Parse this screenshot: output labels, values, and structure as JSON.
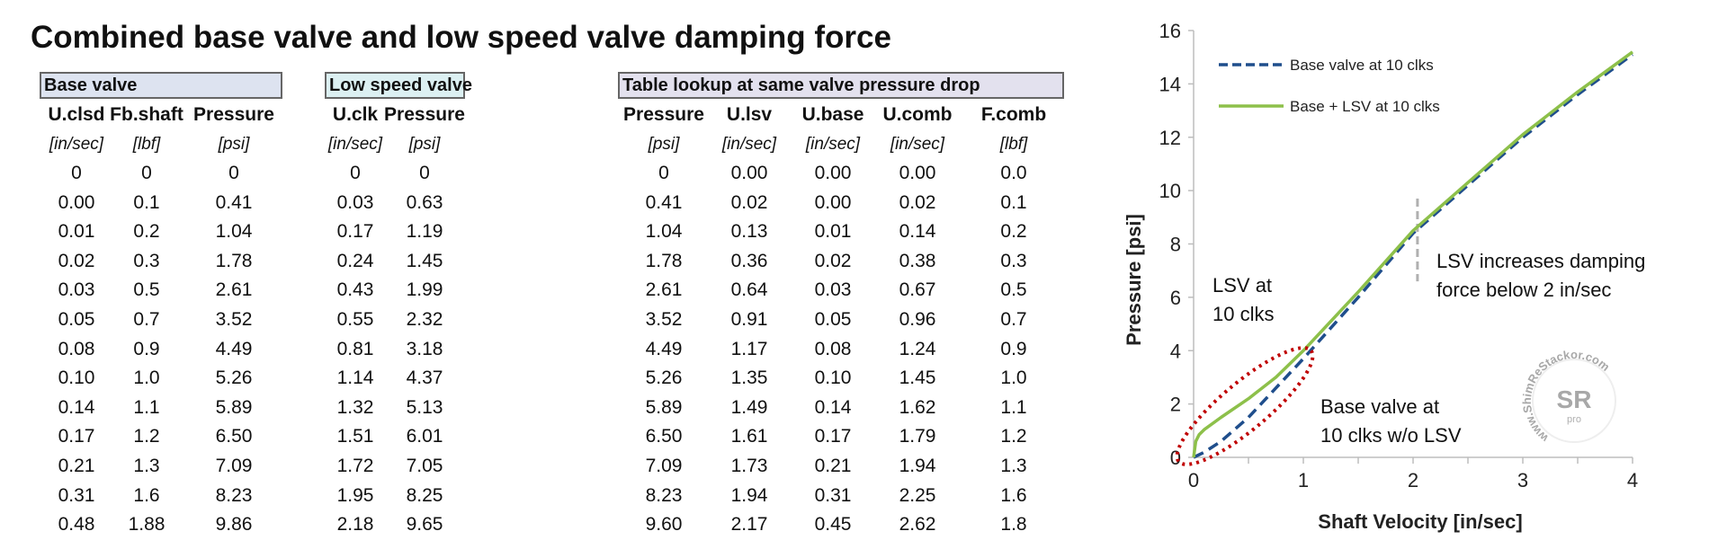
{
  "title": "Combined base valve and low speed valve damping force",
  "tables": [
    {
      "label": "Base valve",
      "color": "#dde3f0",
      "columns": [
        {
          "header": "U.clsd",
          "unit": "[in/sec]",
          "values": [
            "0",
            "0.00",
            "0.01",
            "0.02",
            "0.03",
            "0.05",
            "0.08",
            "0.10",
            "0.14",
            "0.17",
            "0.21",
            "0.31",
            "0.48"
          ]
        },
        {
          "header": "Fb.shaft",
          "unit": "[lbf]",
          "values": [
            "0",
            "0.1",
            "0.2",
            "0.3",
            "0.5",
            "0.7",
            "0.9",
            "1.0",
            "1.1",
            "1.2",
            "1.3",
            "1.6",
            "1.88"
          ]
        },
        {
          "header": "Pressure",
          "unit": "[psi]",
          "values": [
            "0",
            "0.41",
            "1.04",
            "1.78",
            "2.61",
            "3.52",
            "4.49",
            "5.26",
            "5.89",
            "6.50",
            "7.09",
            "8.23",
            "9.86"
          ]
        }
      ]
    },
    {
      "label": "Low speed valve",
      "color": "#dcf0f2",
      "columns": [
        {
          "header": "U.clk",
          "unit": "[in/sec]",
          "values": [
            "0",
            "0.03",
            "0.17",
            "0.24",
            "0.43",
            "0.55",
            "0.81",
            "1.14",
            "1.32",
            "1.51",
            "1.72",
            "1.95",
            "2.18"
          ]
        },
        {
          "header": "Pressure",
          "unit": "[psi]",
          "values": [
            "0",
            "0.63",
            "1.19",
            "1.45",
            "1.99",
            "2.32",
            "3.18",
            "4.37",
            "5.13",
            "6.01",
            "7.05",
            "8.25",
            "9.65"
          ]
        }
      ]
    },
    {
      "label": "Table lookup at same valve pressure drop",
      "color": "#e3e1ee",
      "columns": [
        {
          "header": "Pressure",
          "unit": "[psi]",
          "values": [
            "0",
            "0.41",
            "1.04",
            "1.78",
            "2.61",
            "3.52",
            "4.49",
            "5.26",
            "5.89",
            "6.50",
            "7.09",
            "8.23",
            "9.60"
          ]
        },
        {
          "header": "U.lsv",
          "unit": "[in/sec]",
          "values": [
            "0.00",
            "0.02",
            "0.13",
            "0.36",
            "0.64",
            "0.91",
            "1.17",
            "1.35",
            "1.49",
            "1.61",
            "1.73",
            "1.94",
            "2.17"
          ]
        },
        {
          "header": "U.base",
          "unit": "[in/sec]",
          "values": [
            "0.00",
            "0.00",
            "0.01",
            "0.02",
            "0.03",
            "0.05",
            "0.08",
            "0.10",
            "0.14",
            "0.17",
            "0.21",
            "0.31",
            "0.45"
          ]
        },
        {
          "header": "U.comb",
          "unit": "[in/sec]",
          "values": [
            "0.00",
            "0.02",
            "0.14",
            "0.38",
            "0.67",
            "0.96",
            "1.24",
            "1.45",
            "1.62",
            "1.79",
            "1.94",
            "2.25",
            "2.62"
          ]
        },
        {
          "header": "F.comb",
          "unit": "[lbf]",
          "values": [
            "0.0",
            "0.1",
            "0.2",
            "0.3",
            "0.5",
            "0.7",
            "0.9",
            "1.0",
            "1.1",
            "1.2",
            "1.3",
            "1.6",
            "1.8"
          ]
        }
      ]
    }
  ],
  "chart_data": {
    "type": "line",
    "xlabel": "Shaft Velocity [in/sec]",
    "ylabel": "Pressure [psi]",
    "xlim": [
      0,
      4
    ],
    "ylim": [
      0,
      16
    ],
    "xticks": [
      "0",
      "1",
      "2",
      "3",
      "4"
    ],
    "yticks": [
      "0",
      "2",
      "4",
      "6",
      "8",
      "10",
      "12",
      "14",
      "16"
    ],
    "grid": false,
    "legend_placement": "top-left",
    "series": [
      {
        "name": "Base valve at 10 clks",
        "style": "dashed",
        "color": "#1f4e8c",
        "x": [
          0,
          0.1,
          0.25,
          0.5,
          0.75,
          1,
          1.5,
          2,
          2.5,
          3,
          3.5,
          4
        ],
        "y": [
          0,
          0.2,
          0.6,
          1.5,
          2.6,
          3.7,
          6.0,
          8.4,
          10.2,
          12.0,
          13.6,
          15.1
        ]
      },
      {
        "name": "Base + LSV at 10 clks",
        "style": "solid",
        "color": "#8dc04a",
        "x": [
          0,
          0.02,
          0.05,
          0.1,
          0.25,
          0.5,
          0.75,
          1,
          1.5,
          2,
          2.5,
          3,
          3.5,
          4
        ],
        "y": [
          0,
          0.6,
          0.85,
          1.05,
          1.5,
          2.2,
          3.0,
          4.0,
          6.2,
          8.5,
          10.3,
          12.1,
          13.7,
          15.2
        ]
      }
    ],
    "annotations": [
      {
        "lines": [
          "LSV at",
          "10 clks"
        ]
      },
      {
        "lines": [
          "Base valve at",
          "10 clks w/o LSV"
        ]
      },
      {
        "lines": [
          "LSV increases damping",
          "force below 2 in/sec"
        ]
      }
    ],
    "highlight_color": "#c00000",
    "marker_line_color": "#b0b0b0"
  },
  "watermark": {
    "text": "www.ShimReStackor.com",
    "logo": "SR",
    "sub": "pro"
  }
}
